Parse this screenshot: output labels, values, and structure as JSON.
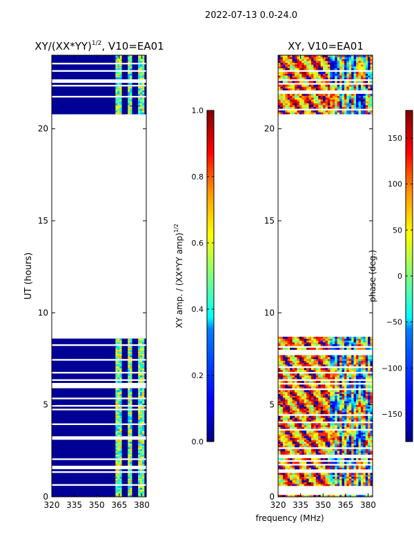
{
  "figure": {
    "suptitle": "2022-07-13 0.0-24.0",
    "shared_xlabel": "frequency (MHz)"
  },
  "chart_data": [
    {
      "type": "heatmap",
      "title_main": "XY/(XX*YY)",
      "title_sup": "1/2",
      "title_tail": ", V10=EA01",
      "xlabel": "",
      "ylabel": "UT (hours)",
      "xlim": [
        320,
        383
      ],
      "ylim": [
        0,
        24
      ],
      "xticks": [
        320,
        335,
        350,
        365,
        380
      ],
      "yticks": [
        0,
        5,
        10,
        15,
        20
      ],
      "data_time_ranges_hours": [
        [
          0,
          8.7
        ],
        [
          20.8,
          24
        ]
      ],
      "hot_channel_bands_mhz": [
        [
          363,
          366
        ],
        [
          370,
          374
        ],
        [
          377,
          381
        ]
      ],
      "colorbar": {
        "label_main": "XY amp. / (XX*YY amp)",
        "label_sup": "1/2",
        "range": [
          0,
          1
        ],
        "ticks": [
          "0.0",
          "0.2",
          "0.4",
          "0.6",
          "0.8",
          "1.0"
        ],
        "tick_values": [
          0,
          0.2,
          0.4,
          0.6,
          0.8,
          1.0
        ]
      }
    },
    {
      "type": "heatmap",
      "title_main": "XY, V10=EA01",
      "xlabel": "",
      "ylabel": "",
      "xlim": [
        320,
        383
      ],
      "ylim": [
        0,
        24
      ],
      "xticks": [
        320,
        335,
        350,
        365,
        380
      ],
      "yticks": [
        0,
        5,
        10,
        15,
        20
      ],
      "data_time_ranges_hours": [
        [
          0,
          8.7
        ],
        [
          20.8,
          24
        ]
      ],
      "colorbar": {
        "label_main": "phase (deg.)",
        "range": [
          -180,
          180
        ],
        "ticks": [
          "−150",
          "−100",
          "−50",
          "0",
          "50",
          "100",
          "150"
        ],
        "tick_values": [
          -150,
          -100,
          -50,
          0,
          50,
          100,
          150
        ]
      }
    }
  ]
}
